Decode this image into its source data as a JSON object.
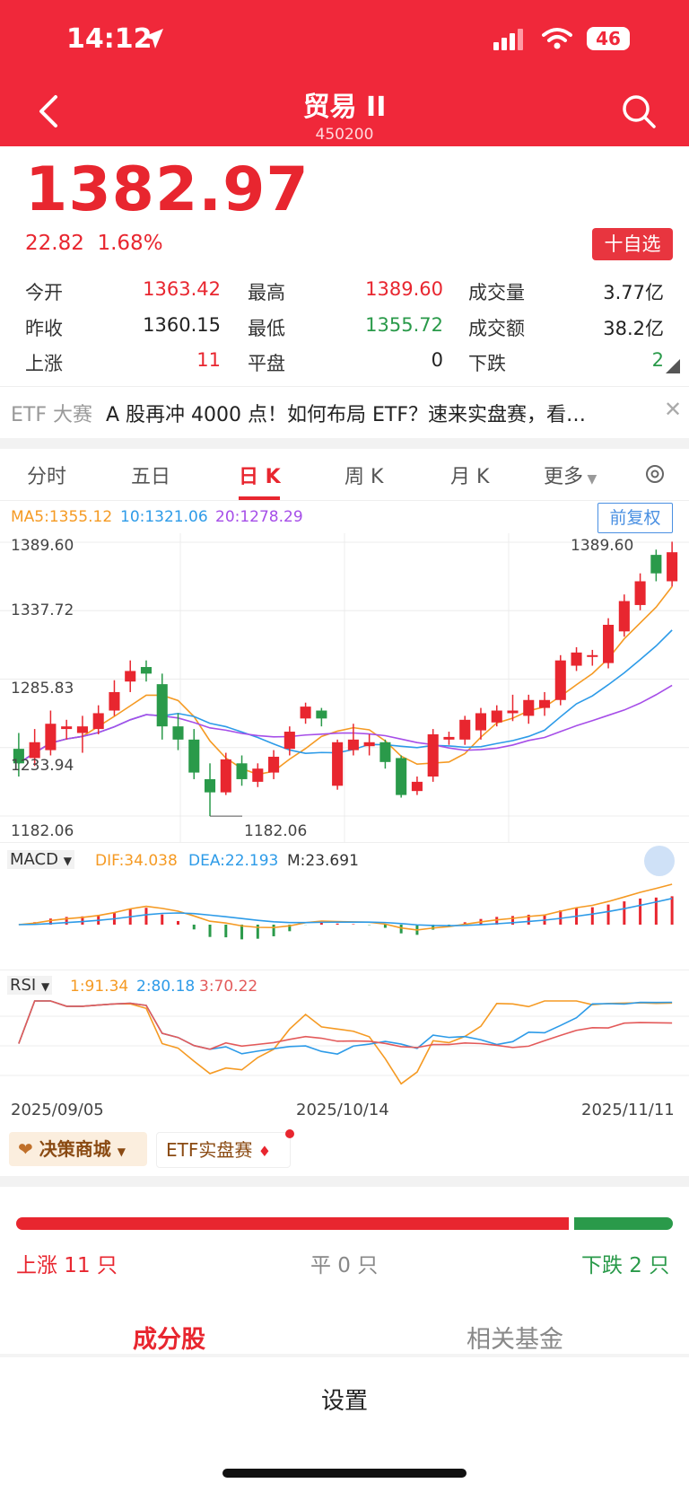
{
  "status_bar": {
    "time": "14:12",
    "battery": "46"
  },
  "header": {
    "title": "贸易 II",
    "code": "450200"
  },
  "quote": {
    "price": "1382.97",
    "change": "22.82",
    "change_pct": "1.68%",
    "watch_button": "十自选"
  },
  "stats": {
    "open_label": "今开",
    "open": "1363.42",
    "high_label": "最高",
    "high": "1389.60",
    "volume_label": "成交量",
    "volume": "3.77亿",
    "prev_close_label": "昨收",
    "prev_close": "1360.15",
    "low_label": "最低",
    "low": "1355.72",
    "amount_label": "成交额",
    "amount": "38.2亿",
    "up_label": "上涨",
    "up": "11",
    "flat_label": "平盘",
    "flat": "0",
    "down_label": "下跌",
    "down": "2"
  },
  "banner": {
    "tag": "ETF 大赛",
    "text": "A 股再冲 4000 点！如何布局 ETF？速来实盘赛，看…"
  },
  "tabs": [
    "分时",
    "五日",
    "日 K",
    "周 K",
    "月 K",
    "更多"
  ],
  "active_tab": "日 K",
  "chart_legend": {
    "ma5": "MA5:1355.12",
    "ma10": "10:1321.06",
    "ma20": "20:1278.29",
    "adjust_button": "前复权"
  },
  "price_axis": {
    "top": "1389.60",
    "l2": "1337.72",
    "l3": "1285.83",
    "l4": "1233.94",
    "bottom": "1182.06",
    "max_mark": "1389.60",
    "min_mark": "1182.06"
  },
  "macd": {
    "name": "MACD",
    "dif": "DIF:34.038",
    "dea": "DEA:22.193",
    "m": "M:23.691"
  },
  "rsi": {
    "name": "RSI",
    "r1": "1:91.34",
    "r2": "2:80.18",
    "r3": "3:70.22"
  },
  "dates": [
    "2025/09/05",
    "2025/10/14",
    "2025/11/11"
  ],
  "pills": {
    "store": "决策商城",
    "contest": "ETF实盘赛"
  },
  "breadth": {
    "up_text": "上涨 11 只",
    "flat_text": "平 0 只",
    "down_text": "下跌 2 只",
    "up_count": 11,
    "down_count": 2
  },
  "bottom_tabs": {
    "constituents": "成分股",
    "related_funds": "相关基金"
  },
  "settings_label": "设置",
  "colors": {
    "up": "#e8262f",
    "down": "#2a9a4a",
    "header": "#f0283a",
    "ma5": "#f59a23",
    "ma10": "#2d9be8",
    "ma20": "#a64ee8"
  },
  "chart_data": {
    "type": "candlestick",
    "x_start": "2025/09/05",
    "x_end": "2025/11/11",
    "ylim": [
      1182.06,
      1389.6
    ],
    "candles": [
      {
        "o": 1233,
        "c": 1222,
        "h": 1245,
        "l": 1212
      },
      {
        "o": 1226,
        "c": 1238,
        "h": 1248,
        "l": 1220
      },
      {
        "o": 1232,
        "c": 1252,
        "h": 1262,
        "l": 1228
      },
      {
        "o": 1248,
        "c": 1250,
        "h": 1255,
        "l": 1240
      },
      {
        "o": 1245,
        "c": 1250,
        "h": 1258,
        "l": 1230
      },
      {
        "o": 1248,
        "c": 1260,
        "h": 1266,
        "l": 1244
      },
      {
        "o": 1262,
        "c": 1276,
        "h": 1285,
        "l": 1258
      },
      {
        "o": 1284,
        "c": 1292,
        "h": 1300,
        "l": 1276
      },
      {
        "o": 1295,
        "c": 1290,
        "h": 1300,
        "l": 1284
      },
      {
        "o": 1282,
        "c": 1250,
        "h": 1290,
        "l": 1240
      },
      {
        "o": 1250,
        "c": 1240,
        "h": 1260,
        "l": 1232
      },
      {
        "o": 1240,
        "c": 1215,
        "h": 1248,
        "l": 1210
      },
      {
        "o": 1210,
        "c": 1200,
        "h": 1222,
        "l": 1182
      },
      {
        "o": 1200,
        "c": 1225,
        "h": 1230,
        "l": 1198
      },
      {
        "o": 1222,
        "c": 1210,
        "h": 1228,
        "l": 1205
      },
      {
        "o": 1208,
        "c": 1218,
        "h": 1222,
        "l": 1204
      },
      {
        "o": 1215,
        "c": 1227,
        "h": 1232,
        "l": 1210
      },
      {
        "o": 1233,
        "c": 1246,
        "h": 1250,
        "l": 1228
      },
      {
        "o": 1256,
        "c": 1265,
        "h": 1268,
        "l": 1252
      },
      {
        "o": 1262,
        "c": 1256,
        "h": 1264,
        "l": 1250
      },
      {
        "o": 1205,
        "c": 1238,
        "h": 1240,
        "l": 1202
      },
      {
        "o": 1232,
        "c": 1240,
        "h": 1252,
        "l": 1228
      },
      {
        "o": 1235,
        "c": 1238,
        "h": 1244,
        "l": 1228
      },
      {
        "o": 1238,
        "c": 1223,
        "h": 1240,
        "l": 1218
      },
      {
        "o": 1226,
        "c": 1198,
        "h": 1228,
        "l": 1196
      },
      {
        "o": 1201,
        "c": 1208,
        "h": 1212,
        "l": 1198
      },
      {
        "o": 1212,
        "c": 1244,
        "h": 1248,
        "l": 1208
      },
      {
        "o": 1240,
        "c": 1242,
        "h": 1246,
        "l": 1236
      },
      {
        "o": 1240,
        "c": 1255,
        "h": 1258,
        "l": 1236
      },
      {
        "o": 1247,
        "c": 1260,
        "h": 1264,
        "l": 1240
      },
      {
        "o": 1253,
        "c": 1262,
        "h": 1266,
        "l": 1250
      },
      {
        "o": 1260,
        "c": 1262,
        "h": 1274,
        "l": 1254
      },
      {
        "o": 1258,
        "c": 1270,
        "h": 1274,
        "l": 1252
      },
      {
        "o": 1264,
        "c": 1270,
        "h": 1276,
        "l": 1258
      },
      {
        "o": 1270,
        "c": 1300,
        "h": 1304,
        "l": 1266
      },
      {
        "o": 1296,
        "c": 1306,
        "h": 1310,
        "l": 1292
      },
      {
        "o": 1304,
        "c": 1304,
        "h": 1308,
        "l": 1296
      },
      {
        "o": 1298,
        "c": 1327,
        "h": 1332,
        "l": 1294
      },
      {
        "o": 1322,
        "c": 1345,
        "h": 1350,
        "l": 1318
      },
      {
        "o": 1342,
        "c": 1360,
        "h": 1366,
        "l": 1338
      },
      {
        "o": 1380,
        "c": 1366,
        "h": 1384,
        "l": 1360
      },
      {
        "o": 1360,
        "c": 1382,
        "h": 1390,
        "l": 1356
      }
    ]
  }
}
